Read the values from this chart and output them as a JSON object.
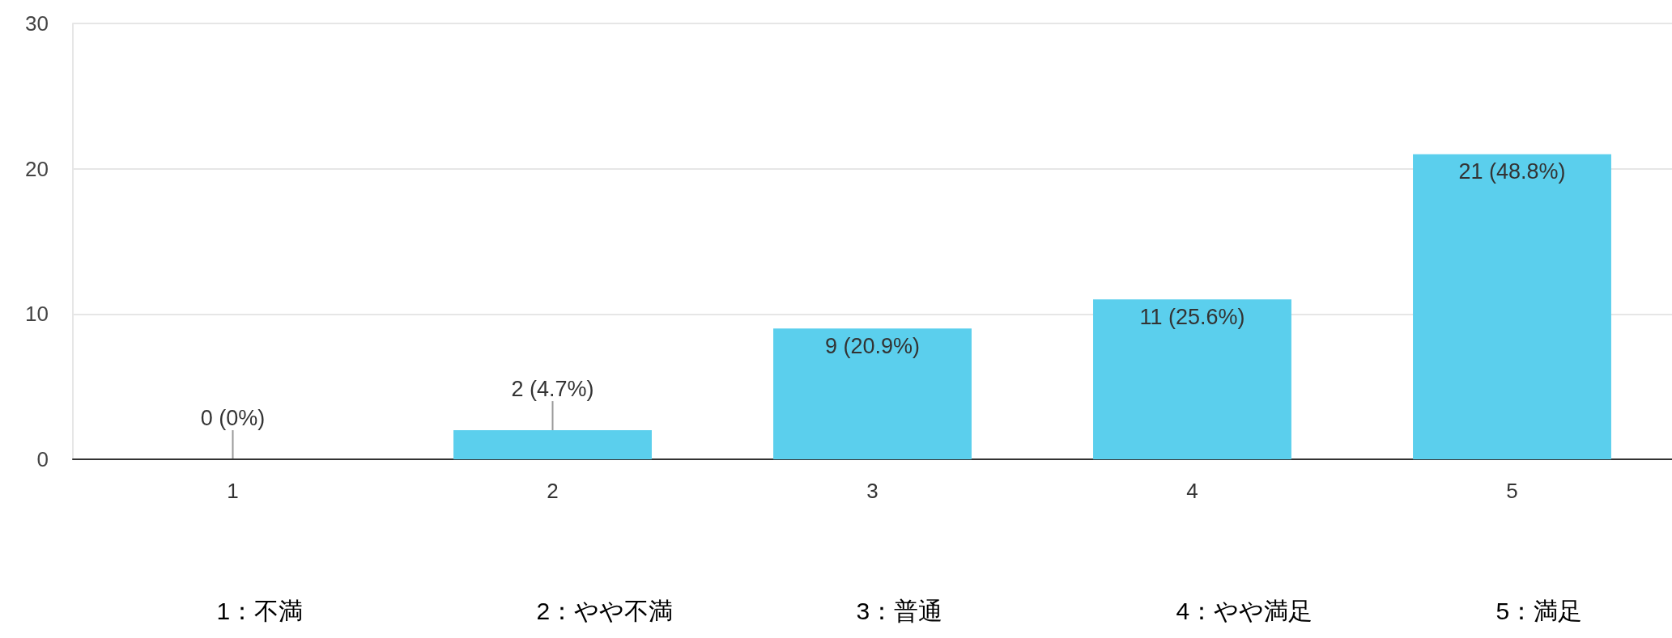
{
  "chart_data": {
    "type": "bar",
    "categories": [
      "1",
      "2",
      "3",
      "4",
      "5"
    ],
    "values": [
      0,
      2,
      9,
      11,
      21
    ],
    "color": "#5bcfed",
    "value_labels": [
      "0 (0%)",
      "2 (4.7%)",
      "9 (20.9%)",
      "11 (25.6%)",
      "21 (48.8%)"
    ],
    "ylim": [
      0,
      30
    ],
    "yticks": [
      0,
      10,
      20,
      30
    ],
    "grid": "y",
    "annotations": [
      "1：不満",
      "2：やや不満",
      "3：普通",
      "4：やや満足",
      "5：満足"
    ]
  }
}
